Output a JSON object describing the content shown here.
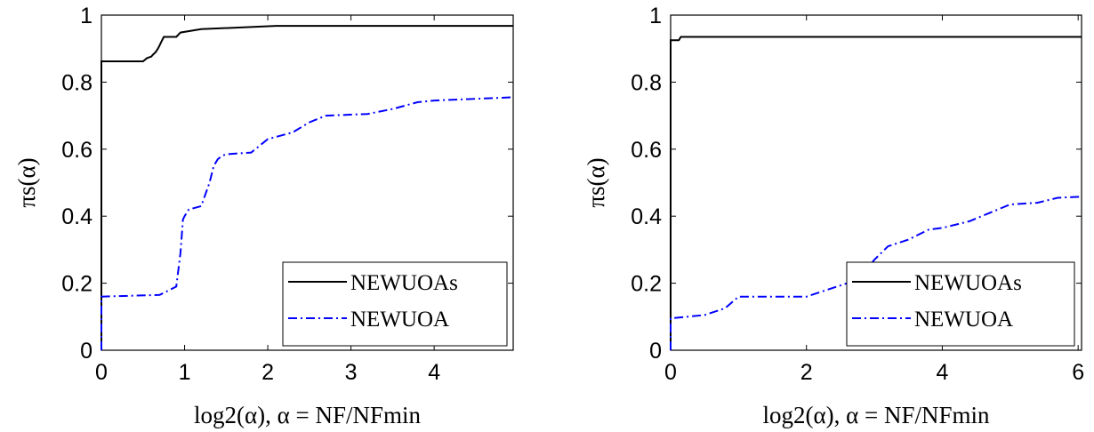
{
  "chart_data": [
    {
      "type": "line",
      "title": "",
      "xlabel": "log2(α),    α = NF/NFmin",
      "ylabel": "πs(α)",
      "xlim": [
        0,
        4.95
      ],
      "ylim": [
        0,
        1
      ],
      "xticks": [
        "0",
        "1",
        "2",
        "3",
        "4"
      ],
      "yticks": [
        "0",
        "0.2",
        "0.4",
        "0.6",
        "0.8",
        "1"
      ],
      "grid": false,
      "legend_position": "bottom-right",
      "series": [
        {
          "name": "NEWUOAs",
          "color": "#000000",
          "dash": "solid",
          "x": [
            0,
            0,
            0.5,
            0.55,
            0.6,
            0.62,
            0.65,
            0.68,
            0.7,
            0.72,
            0.75,
            0.9,
            0.95,
            1.2,
            2.1,
            4.95
          ],
          "y": [
            0,
            0.862,
            0.862,
            0.872,
            0.876,
            0.882,
            0.889,
            0.9,
            0.91,
            0.92,
            0.935,
            0.935,
            0.948,
            0.958,
            0.968,
            0.968
          ]
        },
        {
          "name": "NEWUOA",
          "color": "#0000ff",
          "dash": "dashdot",
          "x": [
            0,
            0,
            0.7,
            0.9,
            0.95,
            0.98,
            1.0,
            1.05,
            1.2,
            1.3,
            1.35,
            1.4,
            1.45,
            1.5,
            1.8,
            2.0,
            2.3,
            2.5,
            2.7,
            3.2,
            3.5,
            3.8,
            4.0,
            4.95
          ],
          "y": [
            0,
            0.16,
            0.165,
            0.19,
            0.29,
            0.39,
            0.4,
            0.42,
            0.43,
            0.5,
            0.55,
            0.57,
            0.58,
            0.585,
            0.59,
            0.63,
            0.65,
            0.68,
            0.7,
            0.705,
            0.72,
            0.74,
            0.745,
            0.755
          ]
        }
      ]
    },
    {
      "type": "line",
      "title": "",
      "xlabel": "log2(α),    α = NF/NFmin",
      "ylabel": "πs(α)",
      "xlim": [
        0,
        6.05
      ],
      "ylim": [
        0,
        1
      ],
      "xticks": [
        "0",
        "2",
        "4",
        "6"
      ],
      "yticks": [
        "0",
        "0.2",
        "0.4",
        "0.6",
        "0.8",
        "1"
      ],
      "grid": false,
      "legend_position": "bottom-right",
      "series": [
        {
          "name": "NEWUOAs",
          "color": "#000000",
          "dash": "solid",
          "x": [
            0,
            0,
            0.12,
            0.15,
            6.05
          ],
          "y": [
            0,
            0.925,
            0.925,
            0.935,
            0.935
          ]
        },
        {
          "name": "NEWUOA",
          "color": "#0000ff",
          "dash": "dashdot",
          "x": [
            0,
            0,
            0.5,
            0.8,
            1.0,
            1.3,
            2.0,
            2.3,
            2.6,
            2.8,
            3.0,
            3.2,
            3.5,
            3.8,
            4.0,
            4.4,
            4.7,
            5.0,
            5.4,
            5.7,
            6.05
          ],
          "y": [
            0,
            0.095,
            0.105,
            0.125,
            0.16,
            0.16,
            0.16,
            0.18,
            0.2,
            0.22,
            0.27,
            0.31,
            0.33,
            0.36,
            0.365,
            0.385,
            0.41,
            0.435,
            0.44,
            0.455,
            0.458
          ]
        }
      ]
    }
  ]
}
